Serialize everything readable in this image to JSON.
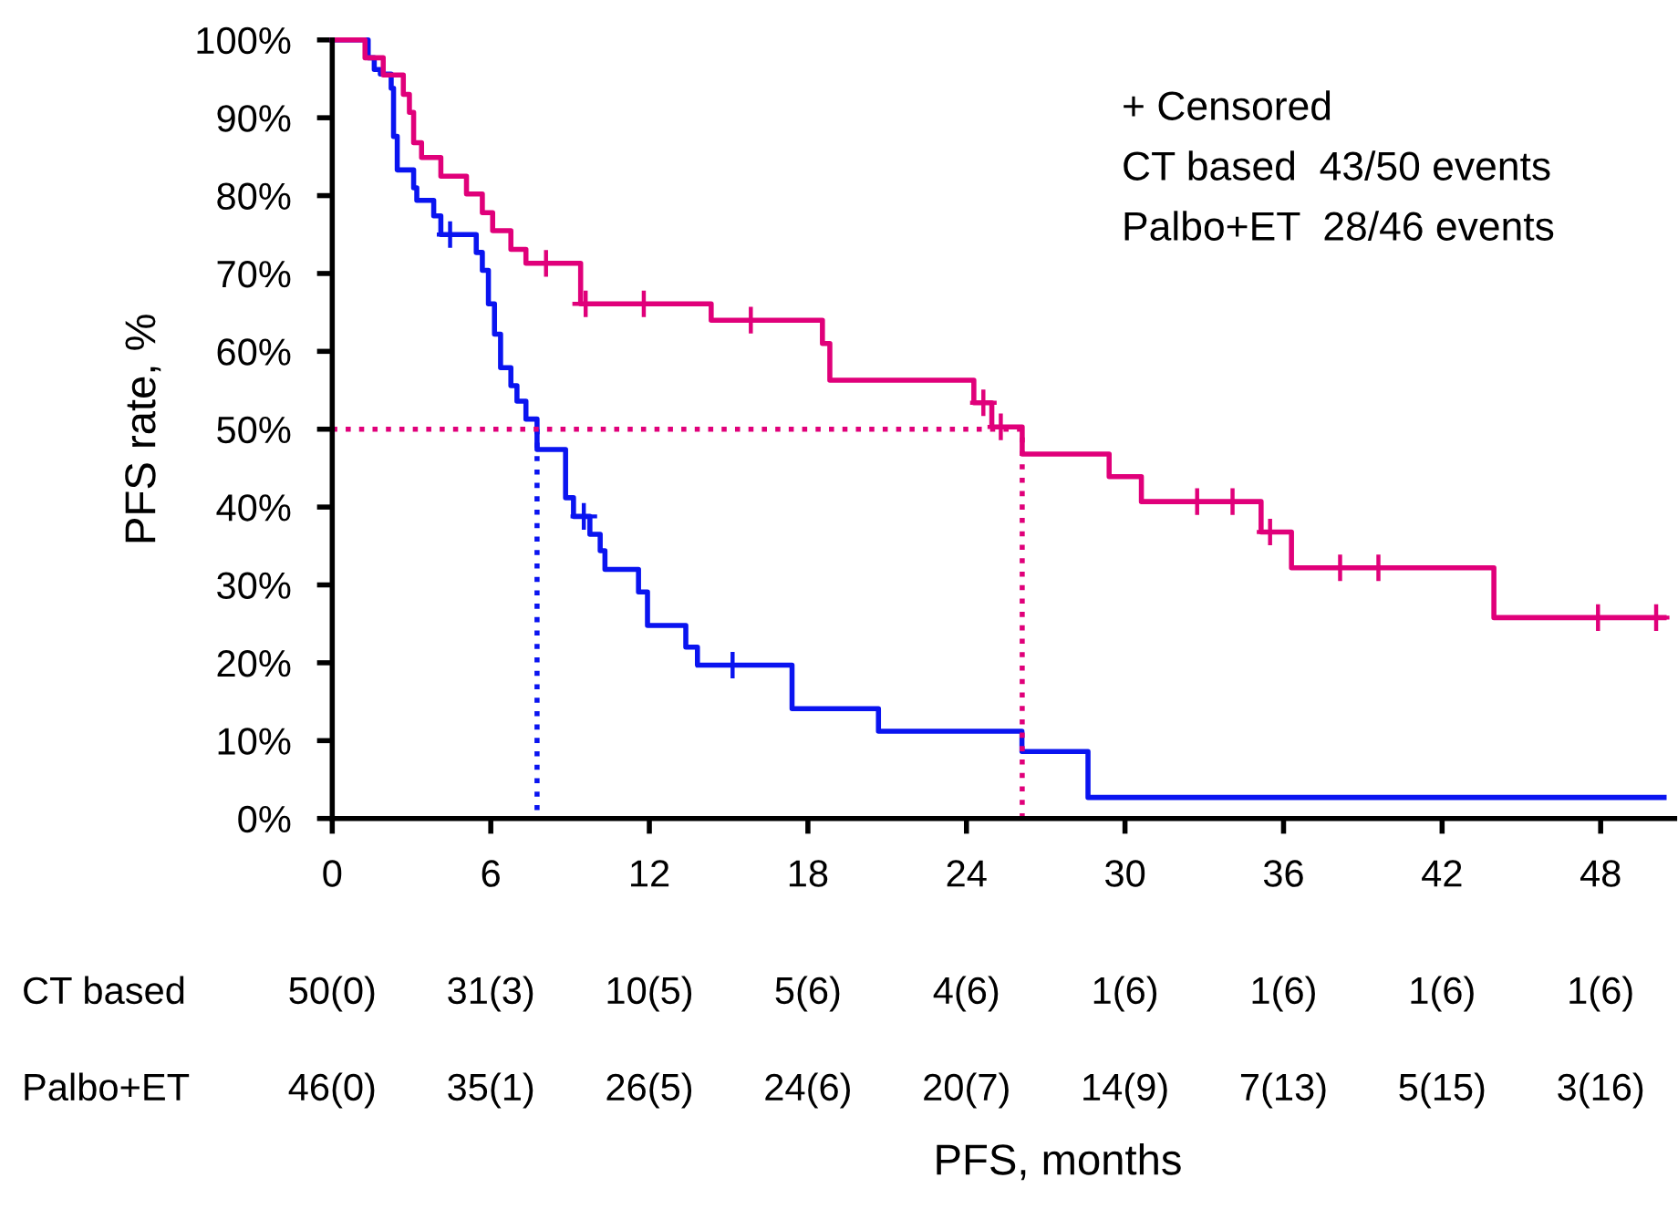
{
  "chart_data": {
    "type": "step",
    "ylabel": "PFS rate, %",
    "xlim": [
      0,
      50.8
    ],
    "ylim": [
      0,
      100
    ],
    "xticks": [
      0,
      6,
      12,
      18,
      24,
      30,
      36,
      42,
      48
    ],
    "yticks": [
      {
        "value": 0,
        "label": "0%"
      },
      {
        "value": 10,
        "label": "10%"
      },
      {
        "value": 20,
        "label": "20%"
      },
      {
        "value": 30,
        "label": "30%"
      },
      {
        "value": 40,
        "label": "40%"
      },
      {
        "value": 50,
        "label": "50%"
      },
      {
        "value": 60,
        "label": "60%"
      },
      {
        "value": 70,
        "label": "70%"
      },
      {
        "value": 80,
        "label": "80%"
      },
      {
        "value": 90,
        "label": "90%"
      },
      {
        "value": 100,
        "label": "100%"
      }
    ],
    "grid": false,
    "series": [
      {
        "color": "#0a14f0",
        "x": [
          0,
          1.36,
          1.59,
          1.82,
          2.23,
          2.32,
          2.46,
          3.08,
          3.2,
          3.84,
          4.11,
          5.45,
          5.68,
          5.91,
          6.14,
          6.37,
          6.76,
          6.99,
          7.33,
          7.75,
          8.83,
          9.13,
          9.75,
          10.14,
          10.32,
          11.59,
          11.93,
          13.38,
          13.82,
          17.4,
          20.67,
          26.1,
          28.6,
          50.4
        ],
        "values": [
          100,
          97.7,
          96.2,
          95.6,
          93.8,
          87.6,
          83.3,
          81,
          79.4,
          77.4,
          75,
          72.7,
          70.4,
          66.1,
          62.2,
          57.9,
          55.6,
          53.6,
          51.3,
          47.4,
          41.2,
          38.8,
          36.5,
          34.4,
          32,
          29.1,
          24.8,
          22,
          19.7,
          14.1,
          11.2,
          8.6,
          2.7,
          2.7
        ]
      },
      {
        "color": "#e0007a",
        "x": [
          0,
          1.24,
          1.93,
          2.69,
          2.92,
          3.08,
          3.38,
          4.11,
          5.08,
          5.68,
          6.07,
          6.76,
          7.33,
          9.4,
          14.34,
          18.55,
          18.83,
          24.28,
          24.96,
          26.11,
          29.4,
          30.62,
          35.15,
          36.3,
          43.96,
          50.4
        ],
        "values": [
          100,
          97.7,
          95.5,
          93,
          90.7,
          86.8,
          84.9,
          82.5,
          80.2,
          77.8,
          75.5,
          73.1,
          71.3,
          66.1,
          64,
          61,
          56.3,
          53.4,
          50.3,
          46.8,
          43.9,
          40.7,
          36.8,
          32.2,
          25.8,
          25.8
        ]
      },
      {
        "type": "scatter",
        "marker": "cross",
        "color": "#0a14f0",
        "x": [
          4.46,
          9.52,
          15.15
        ],
        "values": [
          75,
          38.8,
          19.7
        ]
      },
      {
        "type": "scatter",
        "marker": "cross",
        "color": "#e0007a",
        "x": [
          8.09,
          9.59,
          11.79,
          15.84,
          24.64,
          25.3,
          32.73,
          34.07,
          35.49,
          38.14,
          39.59,
          47.9,
          50.1
        ],
        "values": [
          71.3,
          66.1,
          66.1,
          64,
          53.4,
          50.3,
          40.7,
          40.7,
          36.8,
          32.2,
          32.2,
          25.8,
          25.8
        ]
      },
      {
        "type": "line",
        "line_style": "dotted",
        "color": "#0a14f0",
        "x": [
          7.75,
          7.75
        ],
        "values": [
          50,
          0
        ]
      },
      {
        "type": "line",
        "line_style": "dotted",
        "color": "#e0007a",
        "x": [
          0,
          26.11,
          26.11
        ],
        "values": [
          50,
          50,
          0
        ]
      }
    ],
    "annotations": [
      "+ Censored",
      "CT based  43/50 events",
      "Palbo+ET  28/46 events",
      "CT based",
      "50(0)",
      "31(3)",
      "10(5)",
      "5(6)",
      "4(6)",
      "1(6)",
      "1(6)",
      "1(6)",
      "1(6)",
      "Palbo+ET",
      "46(0)",
      "35(1)",
      "26(5)",
      "24(6)",
      "20(7)",
      "14(9)",
      "7(13)",
      "5(15)",
      "3(16)",
      "PFS, months"
    ]
  }
}
